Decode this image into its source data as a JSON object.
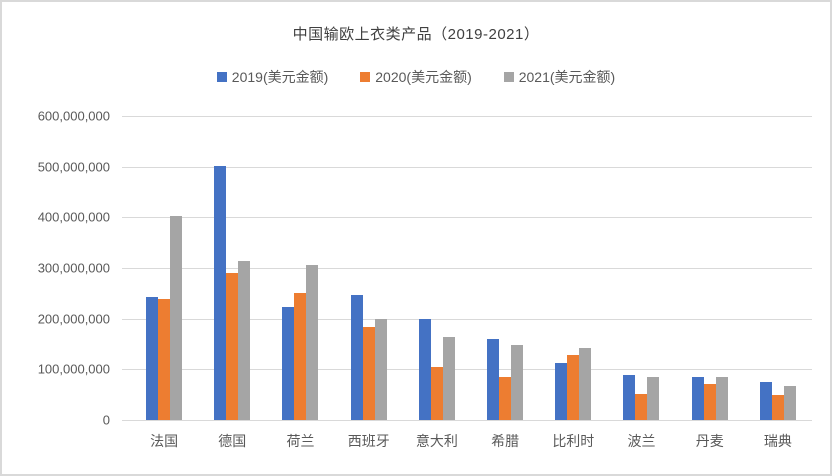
{
  "frame": {
    "background": "#ffffff",
    "border_color": "#d9d9d9",
    "gridline_color": "#d9d9d9",
    "axis_label_color": "#595959",
    "title_color": "#404040"
  },
  "chart_data": {
    "type": "bar",
    "title": "中国输欧上衣类产品（2019-2021）",
    "categories": [
      "法国",
      "德国",
      "荷兰",
      "西班牙",
      "意大利",
      "希腊",
      "比利时",
      "波兰",
      "丹麦",
      "瑞典"
    ],
    "series": [
      {
        "name": "2019(美元金额)",
        "color": "#4472C4",
        "values": [
          243000000,
          501000000,
          224000000,
          247000000,
          200000000,
          159000000,
          112000000,
          88000000,
          84000000,
          75000000
        ]
      },
      {
        "name": "2020(美元金额)",
        "color": "#ED7D31",
        "values": [
          239000000,
          290000000,
          251000000,
          184000000,
          104000000,
          84000000,
          128000000,
          52000000,
          71000000,
          49000000
        ]
      },
      {
        "name": "2021(美元金额)",
        "color": "#A5A5A5",
        "values": [
          402000000,
          313000000,
          306000000,
          200000000,
          163000000,
          148000000,
          143000000,
          85000000,
          85000000,
          68000000
        ]
      }
    ],
    "xlabel": "",
    "ylabel": "",
    "ylim": [
      0,
      600000000
    ],
    "y_tick_values": [
      0,
      100000000,
      200000000,
      300000000,
      400000000,
      500000000,
      600000000
    ],
    "y_tick_labels": [
      "0",
      "100,000,000",
      "200,000,000",
      "300,000,000",
      "400,000,000",
      "500,000,000",
      "600,000,000"
    ],
    "grid": "horizontal",
    "legend_position": "top"
  }
}
